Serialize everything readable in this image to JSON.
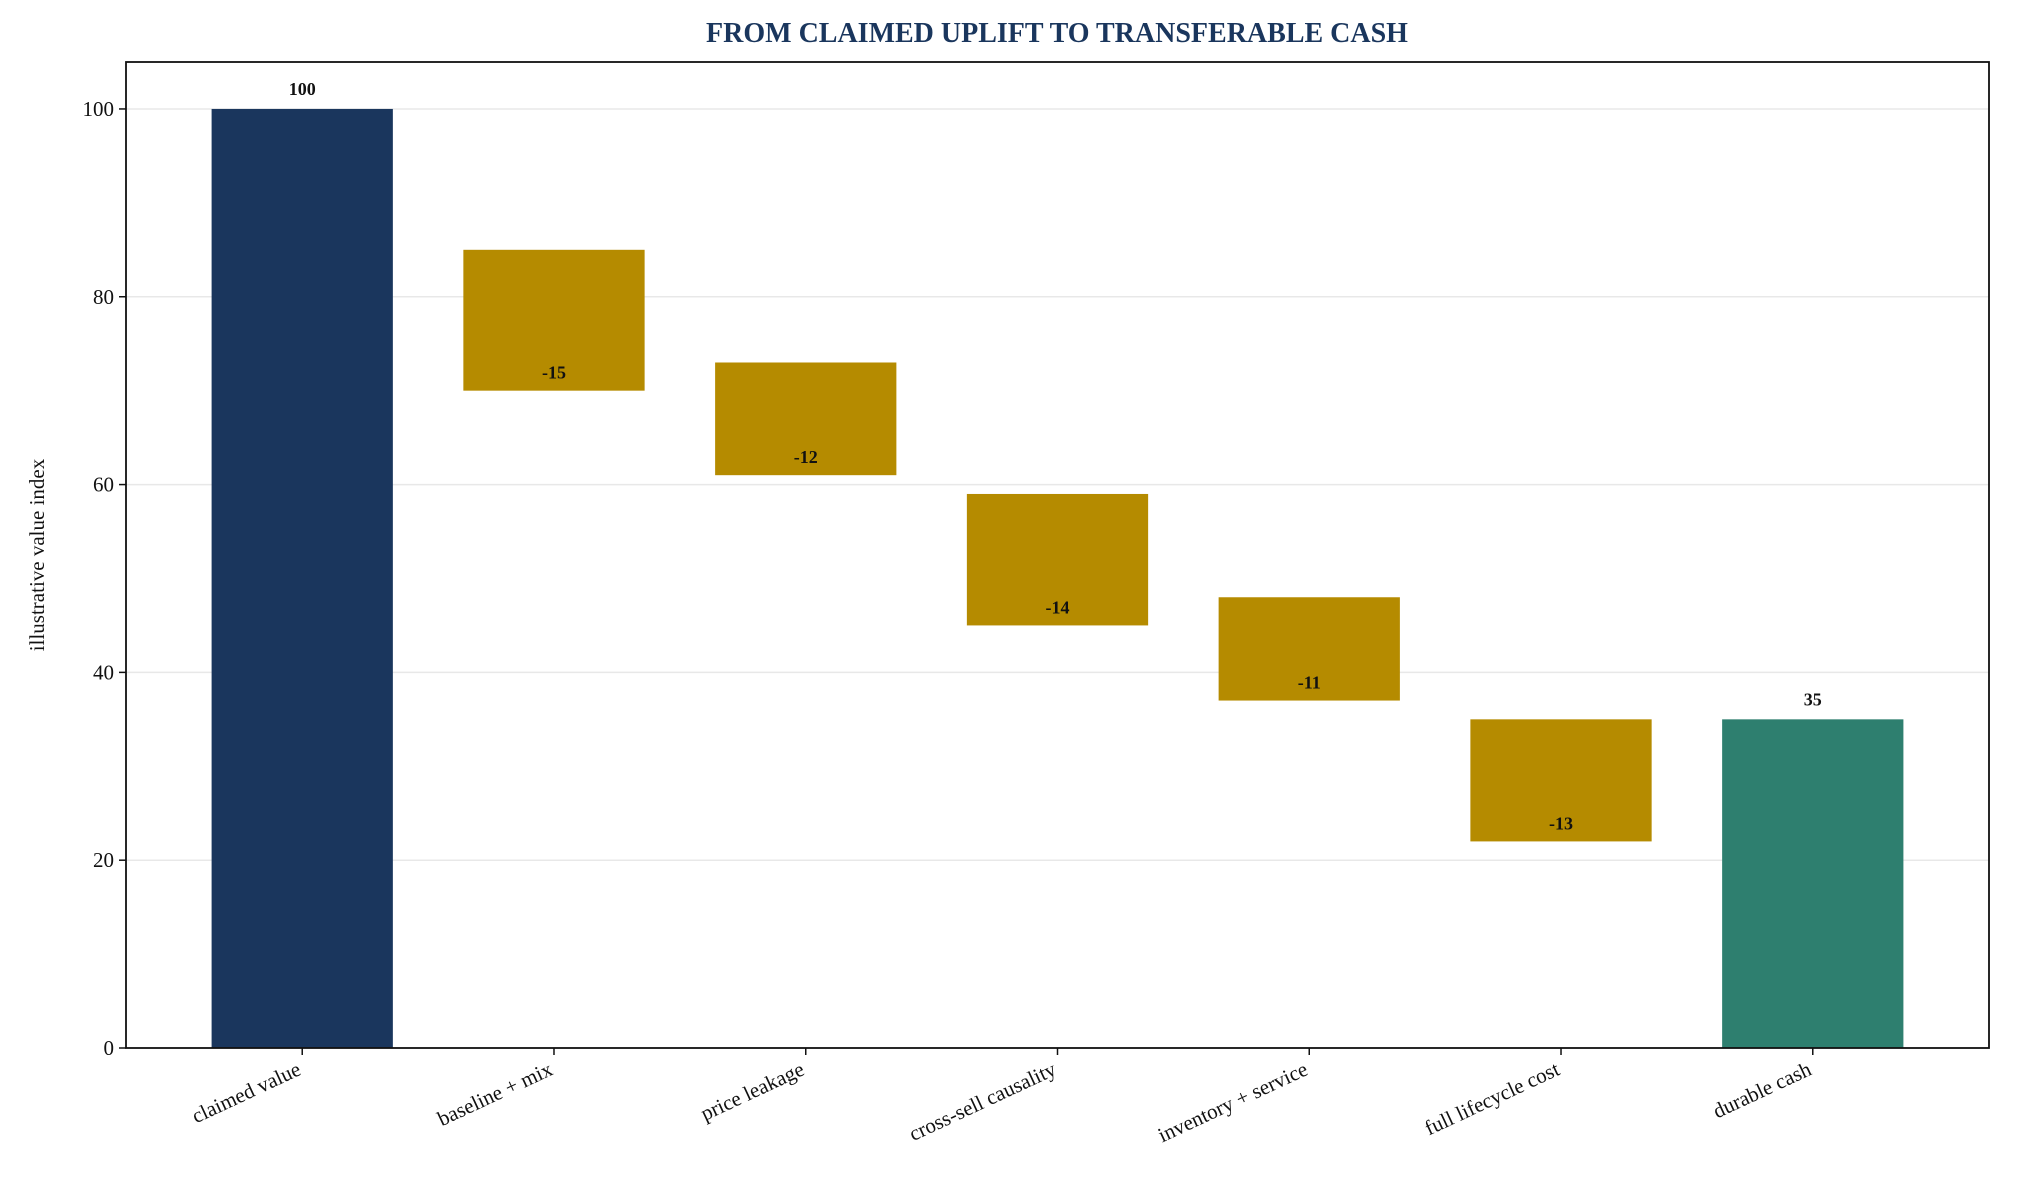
{
  "chart_data": {
    "type": "waterfall",
    "title": "FROM CLAIMED UPLIFT TO TRANSFERABLE CASH",
    "ylabel": "illustrative value index",
    "categories": [
      "claimed value",
      "baseline + mix",
      "price leakage",
      "cross-sell causality",
      "inventory + service",
      "full lifecycle cost",
      "durable cash"
    ],
    "values": [
      100,
      -15,
      -12,
      -14,
      -11,
      -13,
      35
    ],
    "measure": [
      "absolute",
      "relative",
      "relative",
      "relative",
      "relative",
      "relative",
      "total"
    ],
    "colors": [
      "#1a365d",
      "#b58b00",
      "#b58b00",
      "#b58b00",
      "#b58b00",
      "#b58b00",
      "#2e7f6f"
    ],
    "ylim": [
      0,
      105
    ],
    "yticks": [
      0,
      20,
      40,
      60,
      80,
      100
    ],
    "grid": true
  }
}
